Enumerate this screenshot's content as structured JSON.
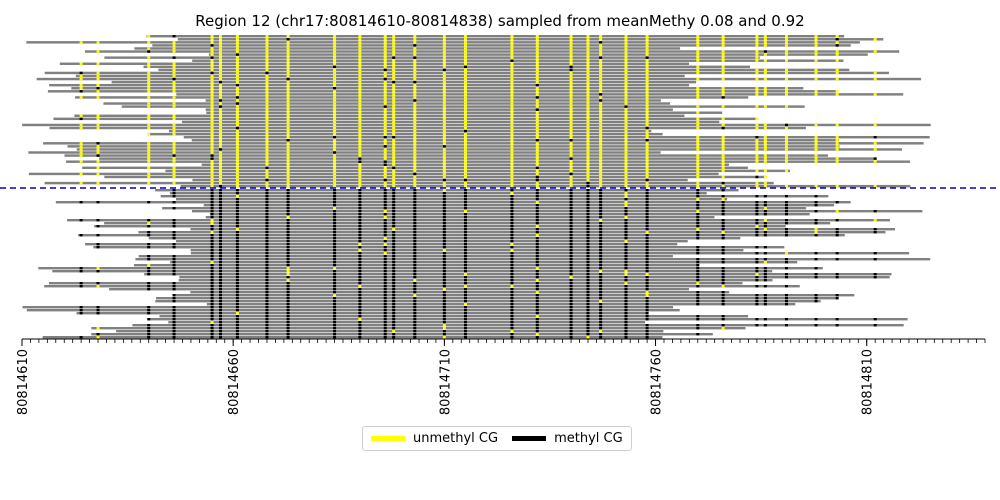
{
  "chart_data": {
    "type": "heatmap",
    "title": "Region 12 (chr17:80814610-80814838) sampled from meanMethy 0.08 and 0.92",
    "xlim": [
      80814610,
      80814838
    ],
    "x_tick_labels": [
      "80814610",
      "80814660",
      "80814710",
      "80814760",
      "80814810"
    ],
    "x_tick_values": [
      80814610,
      80814660,
      80814710,
      80814760,
      80814810
    ],
    "minor_tick_step": 2,
    "cg_positions": [
      80814624,
      80814628,
      80814640,
      80814646,
      80814655,
      80814657,
      80814661,
      80814668,
      80814673,
      80814684,
      80814690,
      80814696,
      80814698,
      80814703,
      80814710,
      80814715,
      80814726,
      80814732,
      80814740,
      80814744,
      80814747,
      80814753,
      80814758,
      80814770,
      80814776,
      80814784,
      80814786,
      80814791,
      80814798,
      80814803,
      80814812
    ],
    "groups": [
      {
        "name": "sampled from meanMethy 0.08",
        "read_count": 50,
        "mean_methylation": 0.08
      },
      {
        "name": "sampled from meanMethy 0.92",
        "read_count": 50,
        "mean_methylation": 0.92
      }
    ],
    "divider": "dashed line between the two read groups",
    "colors": {
      "read": "#808080",
      "unmethyl": "#ffff00",
      "methyl": "#000000",
      "divider": "#0000cc"
    },
    "legend": {
      "placement": "bottom-center",
      "entries": [
        {
          "label": "unmethyl CG",
          "color": "#ffff00"
        },
        {
          "label": "methyl CG",
          "color": "#000000"
        }
      ]
    },
    "grid": false
  }
}
